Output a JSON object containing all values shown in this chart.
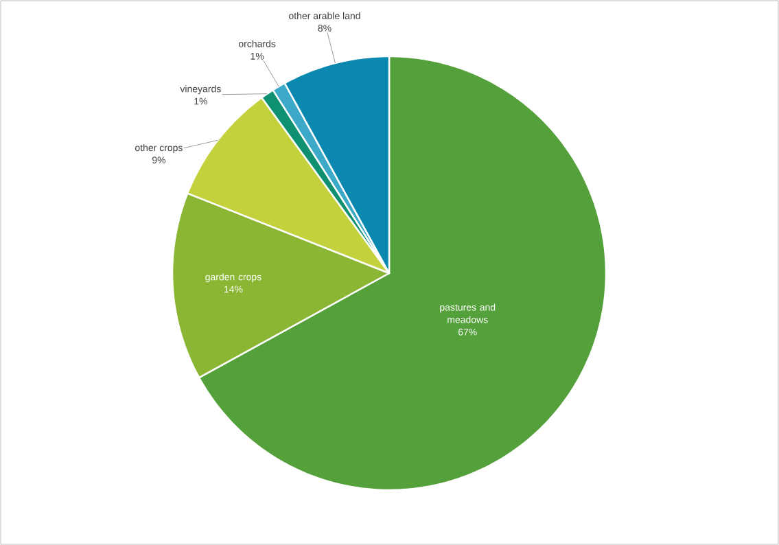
{
  "chart_data": {
    "type": "pie",
    "categories": [
      "pastures and meadows",
      "garden crops",
      "other crops",
      "vineyards",
      "orchards",
      "other arable land"
    ],
    "values": [
      67,
      14,
      9,
      1,
      1,
      8
    ],
    "value_labels": [
      "67%",
      "14%",
      "9%",
      "1%",
      "1%",
      "8%"
    ],
    "colors": [
      "#54a03a",
      "#8bb634",
      "#c3d13c",
      "#0f9171",
      "#3ba9c7",
      "#0a88b0"
    ]
  }
}
